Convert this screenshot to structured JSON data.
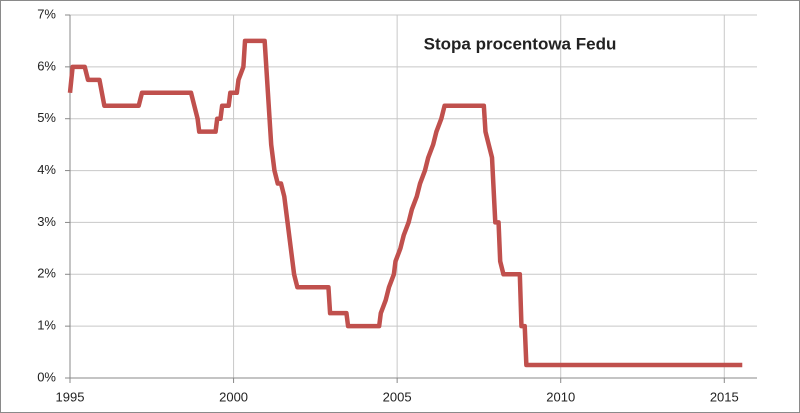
{
  "chart_data": {
    "type": "line",
    "title": "Stopa procentowa Fedu",
    "x": [
      1995.0,
      1995.08,
      1995.45,
      1995.55,
      1995.9,
      1996.05,
      1997.1,
      1997.2,
      1998.7,
      1998.8,
      1998.9,
      1998.95,
      1999.45,
      1999.5,
      1999.6,
      1999.65,
      1999.85,
      1999.9,
      2000.1,
      2000.15,
      2000.3,
      2000.35,
      2000.95,
      2001.05,
      2001.1,
      2001.15,
      2001.25,
      2001.35,
      2001.45,
      2001.55,
      2001.65,
      2001.75,
      2001.85,
      2001.95,
      2002.9,
      2002.95,
      2003.45,
      2003.5,
      2004.45,
      2004.5,
      2004.65,
      2004.75,
      2004.9,
      2004.95,
      2005.1,
      2005.2,
      2005.35,
      2005.45,
      2005.6,
      2005.7,
      2005.85,
      2005.95,
      2006.1,
      2006.2,
      2006.35,
      2006.45,
      2007.65,
      2007.7,
      2007.8,
      2007.9,
      2008.0,
      2008.1,
      2008.15,
      2008.25,
      2008.75,
      2008.8,
      2008.9,
      2008.95,
      2015.55
    ],
    "series": [
      {
        "name": "Stopa procentowa Fedu",
        "color": "#c0504d",
        "values": [
          5.5,
          6.0,
          6.0,
          5.75,
          5.75,
          5.25,
          5.25,
          5.5,
          5.5,
          5.25,
          5.0,
          4.75,
          4.75,
          5.0,
          5.0,
          5.25,
          5.25,
          5.5,
          5.5,
          5.75,
          6.0,
          6.5,
          6.5,
          5.5,
          5.0,
          4.5,
          4.0,
          3.75,
          3.75,
          3.5,
          3.0,
          2.5,
          2.0,
          1.75,
          1.75,
          1.25,
          1.25,
          1.0,
          1.0,
          1.25,
          1.5,
          1.75,
          2.0,
          2.25,
          2.5,
          2.75,
          3.0,
          3.25,
          3.5,
          3.75,
          4.0,
          4.25,
          4.5,
          4.75,
          5.0,
          5.25,
          5.25,
          4.75,
          4.5,
          4.25,
          3.0,
          3.0,
          2.25,
          2.0,
          2.0,
          1.0,
          1.0,
          0.25,
          0.25
        ]
      }
    ],
    "xlim": [
      1995,
      2016
    ],
    "xticks": [
      1995,
      2000,
      2005,
      2010,
      2015
    ],
    "ylim": [
      0,
      7
    ],
    "yticks": [
      {
        "value": 0,
        "label": "0%"
      },
      {
        "value": 1,
        "label": "1%"
      },
      {
        "value": 2,
        "label": "2%"
      },
      {
        "value": 3,
        "label": "3%"
      },
      {
        "value": 4,
        "label": "4%"
      },
      {
        "value": 5,
        "label": "5%"
      },
      {
        "value": 6,
        "label": "6%"
      },
      {
        "value": 7,
        "label": "7%"
      }
    ],
    "grid": true
  }
}
